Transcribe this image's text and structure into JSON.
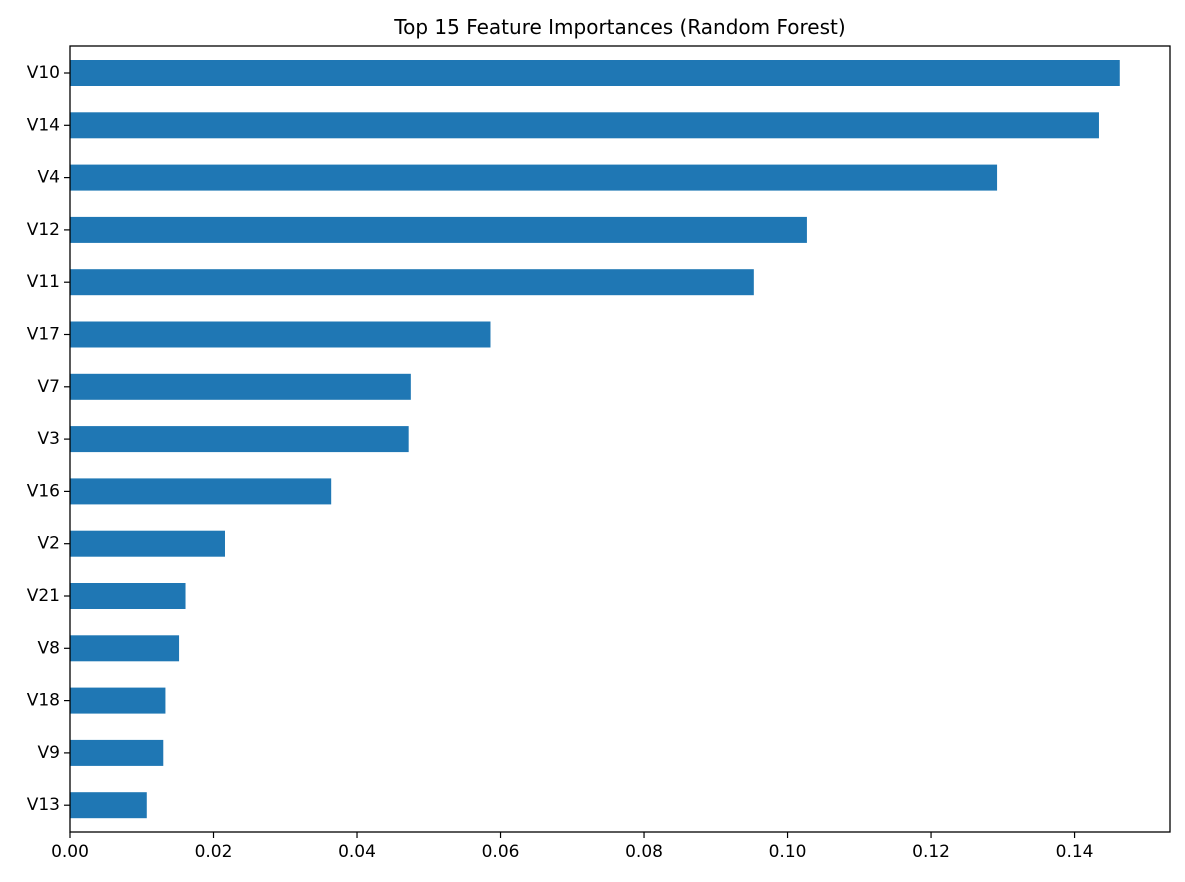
{
  "chart_data": {
    "type": "bar",
    "orientation": "horizontal",
    "title": "Top 15 Feature Importances (Random Forest)",
    "xlabel": "",
    "ylabel": "",
    "categories": [
      "V10",
      "V14",
      "V4",
      "V12",
      "V11",
      "V17",
      "V7",
      "V3",
      "V16",
      "V2",
      "V21",
      "V8",
      "V18",
      "V9",
      "V13"
    ],
    "values": [
      0.1463,
      0.1434,
      0.1292,
      0.1027,
      0.0953,
      0.0586,
      0.0475,
      0.0472,
      0.0364,
      0.0216,
      0.0161,
      0.0152,
      0.0133,
      0.013,
      0.0107
    ],
    "xlim": [
      0,
      0.1533
    ],
    "xticks": [
      0.0,
      0.02,
      0.04,
      0.06,
      0.08,
      0.1,
      0.12,
      0.14
    ],
    "xtick_labels": [
      "0.00",
      "0.02",
      "0.04",
      "0.06",
      "0.08",
      "0.10",
      "0.12",
      "0.14"
    ],
    "grid": false,
    "legend": "none",
    "bar_color": "#1f77b4"
  }
}
